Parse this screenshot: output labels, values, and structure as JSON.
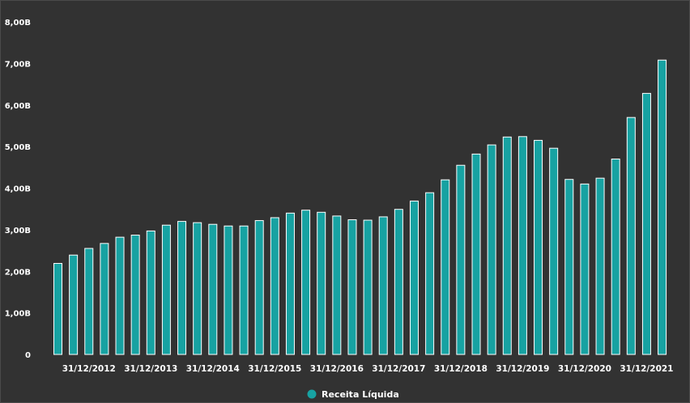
{
  "chart_data": {
    "type": "bar",
    "title": "",
    "xlabel": "",
    "ylabel": "",
    "ylim": [
      0,
      8
    ],
    "grid": false,
    "legend_position": "bottom-center",
    "y_ticks": [
      "0",
      "1,00B",
      "2,00B",
      "3,00B",
      "4,00B",
      "5,00B",
      "6,00B",
      "7,00B",
      "8,00B"
    ],
    "x_tick_labels": [
      "31/12/2012",
      "31/12/2013",
      "31/12/2014",
      "31/12/2015",
      "31/12/2016",
      "31/12/2017",
      "31/12/2018",
      "31/12/2019",
      "31/12/2020",
      "31/12/2021"
    ],
    "x_tick_positions": [
      2,
      6,
      10,
      14,
      18,
      22,
      26,
      30,
      34,
      38
    ],
    "series": [
      {
        "name": "Receita Líquida",
        "color": "#17a2a2",
        "values": [
          2.19,
          2.39,
          2.55,
          2.67,
          2.82,
          2.87,
          2.97,
          3.11,
          3.2,
          3.17,
          3.13,
          3.09,
          3.09,
          3.22,
          3.29,
          3.4,
          3.47,
          3.42,
          3.33,
          3.24,
          3.23,
          3.31,
          3.49,
          3.69,
          3.89,
          4.2,
          4.55,
          4.82,
          5.04,
          5.23,
          5.24,
          5.15,
          4.96,
          4.21,
          4.1,
          4.24,
          4.7,
          5.7,
          6.28,
          7.08
        ]
      }
    ]
  }
}
